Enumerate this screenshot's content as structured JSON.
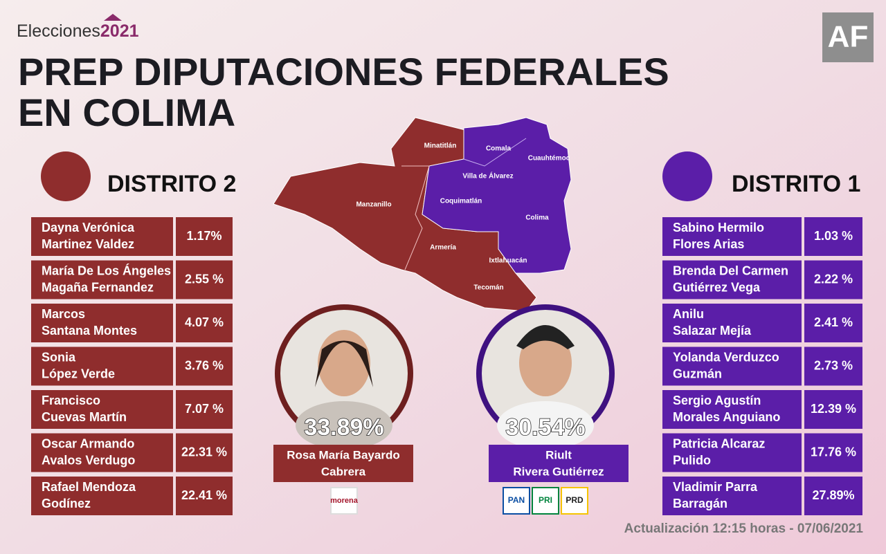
{
  "header": {
    "brand": {
      "word": "Elecciones",
      "year": "2021"
    },
    "title": [
      "PREP DIPUTACIONES FEDERALES",
      "EN COLIMA"
    ],
    "logo": "AF"
  },
  "map": {
    "labels": [
      "Minatitlán",
      "Comala",
      "Cuauhtémoc",
      "Villa de Álvarez",
      "Manzanillo",
      "Coquimatlán",
      "Colima",
      "Armería",
      "Ixtlahuacán",
      "Tecomán"
    ]
  },
  "districts": [
    {
      "title": "DISTRITO 2",
      "candidates": [
        {
          "name": [
            "Dayna Verónica",
            "Martinez Valdez"
          ],
          "percent": "1.17%"
        },
        {
          "name": [
            "María De Los Ángeles",
            "Magaña Fernandez"
          ],
          "percent": "2.55 %"
        },
        {
          "name": [
            "Marcos",
            "Santana Montes"
          ],
          "percent": "4.07 %"
        },
        {
          "name": [
            "Sonia",
            "López Verde"
          ],
          "percent": "3.76 %"
        },
        {
          "name": [
            "Francisco",
            "Cuevas Martín"
          ],
          "percent": "7.07 %"
        },
        {
          "name": [
            "Oscar Armando",
            "Avalos Verdugo"
          ],
          "percent": "22.31 %"
        },
        {
          "name": [
            "Rafael Mendoza",
            "Godínez"
          ],
          "percent": "22.41 %"
        }
      ],
      "winner": {
        "percent": "33.89%",
        "name": [
          "Rosa María Bayardo",
          "Cabrera"
        ],
        "parties": [
          "morena"
        ]
      }
    },
    {
      "title": "DISTRITO 1",
      "candidates": [
        {
          "name": [
            "Sabino Hermilo",
            "Flores Arias"
          ],
          "percent": "1.03 %"
        },
        {
          "name": [
            "Brenda Del Carmen",
            "Gutiérrez Vega"
          ],
          "percent": "2.22 %"
        },
        {
          "name": [
            "Anilu",
            "Salazar Mejía"
          ],
          "percent": "2.41 %"
        },
        {
          "name": [
            "Yolanda Verduzco",
            "Guzmán"
          ],
          "percent": "2.73 %"
        },
        {
          "name": [
            "Sergio Agustín",
            "Morales Anguiano"
          ],
          "percent": "12.39 %"
        },
        {
          "name": [
            "Patricia Alcaraz",
            "Pulido"
          ],
          "percent": "17.76 %"
        },
        {
          "name": [
            "Vladimir Parra",
            "Barragán"
          ],
          "percent": "27.89%"
        }
      ],
      "winner": {
        "percent": "30.54%",
        "name": [
          "Riult",
          "Rivera Gutiérrez"
        ],
        "parties": [
          "PAN",
          "PRI",
          "PRD"
        ]
      }
    }
  ],
  "footer": "Actualización 12:15 horas - 07/06/2021"
}
